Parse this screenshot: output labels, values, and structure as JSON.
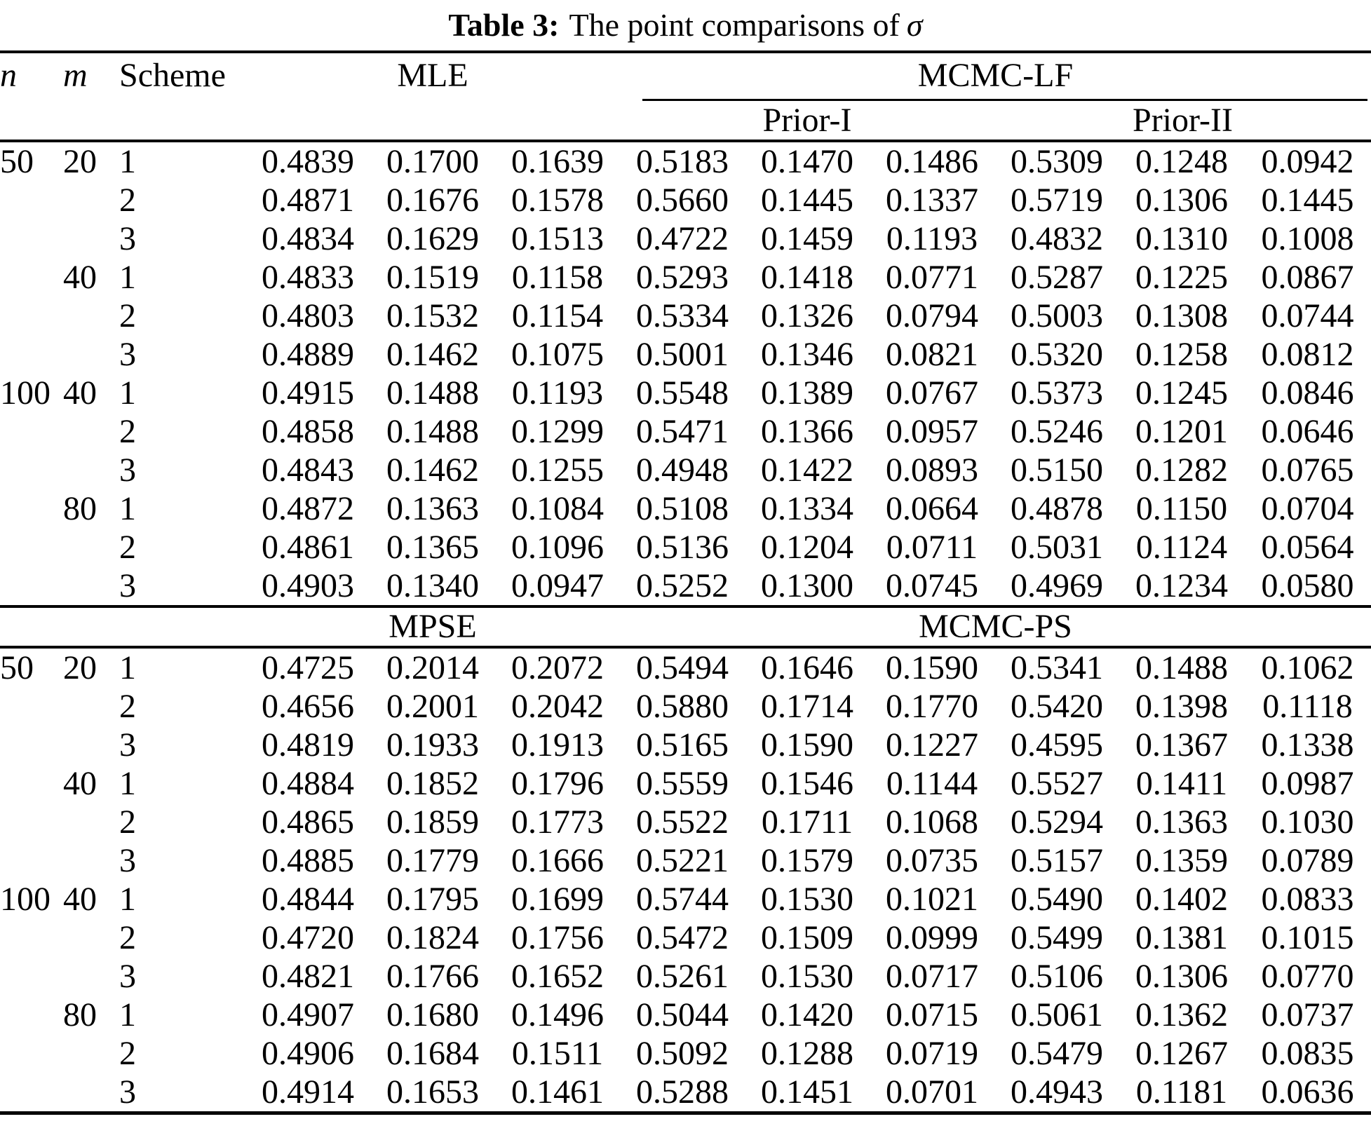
{
  "caption": {
    "label": "Table 3:",
    "text": "The point comparisons of",
    "symbol": "σ"
  },
  "header": {
    "n": "n",
    "m": "m",
    "scheme": "Scheme",
    "prior1": "Prior-I",
    "prior2": "Prior-II"
  },
  "colors": {
    "text": "#000000",
    "background": "#ffffff",
    "rule": "#000000"
  },
  "sections": [
    {
      "left_group": "MLE",
      "right_group": "MCMC-LF",
      "rows": [
        {
          "n": "50",
          "m": "20",
          "scheme": "1",
          "values": [
            "0.4839",
            "0.1700",
            "0.1639",
            "0.5183",
            "0.1470",
            "0.1486",
            "0.5309",
            "0.1248",
            "0.0942"
          ]
        },
        {
          "n": "",
          "m": "",
          "scheme": "2",
          "values": [
            "0.4871",
            "0.1676",
            "0.1578",
            "0.5660",
            "0.1445",
            "0.1337",
            "0.5719",
            "0.1306",
            "0.1445"
          ]
        },
        {
          "n": "",
          "m": "",
          "scheme": "3",
          "values": [
            "0.4834",
            "0.1629",
            "0.1513",
            "0.4722",
            "0.1459",
            "0.1193",
            "0.4832",
            "0.1310",
            "0.1008"
          ]
        },
        {
          "n": "",
          "m": "40",
          "scheme": "1",
          "values": [
            "0.4833",
            "0.1519",
            "0.1158",
            "0.5293",
            "0.1418",
            "0.0771",
            "0.5287",
            "0.1225",
            "0.0867"
          ]
        },
        {
          "n": "",
          "m": "",
          "scheme": "2",
          "values": [
            "0.4803",
            "0.1532",
            "0.1154",
            "0.5334",
            "0.1326",
            "0.0794",
            "0.5003",
            "0.1308",
            "0.0744"
          ]
        },
        {
          "n": "",
          "m": "",
          "scheme": "3",
          "values": [
            "0.4889",
            "0.1462",
            "0.1075",
            "0.5001",
            "0.1346",
            "0.0821",
            "0.5320",
            "0.1258",
            "0.0812"
          ]
        },
        {
          "n": "100",
          "m": "40",
          "scheme": "1",
          "values": [
            "0.4915",
            "0.1488",
            "0.1193",
            "0.5548",
            "0.1389",
            "0.0767",
            "0.5373",
            "0.1245",
            "0.0846"
          ]
        },
        {
          "n": "",
          "m": "",
          "scheme": "2",
          "values": [
            "0.4858",
            "0.1488",
            "0.1299",
            "0.5471",
            "0.1366",
            "0.0957",
            "0.5246",
            "0.1201",
            "0.0646"
          ]
        },
        {
          "n": "",
          "m": "",
          "scheme": "3",
          "values": [
            "0.4843",
            "0.1462",
            "0.1255",
            "0.4948",
            "0.1422",
            "0.0893",
            "0.5150",
            "0.1282",
            "0.0765"
          ]
        },
        {
          "n": "",
          "m": "80",
          "scheme": "1",
          "values": [
            "0.4872",
            "0.1363",
            "0.1084",
            "0.5108",
            "0.1334",
            "0.0664",
            "0.4878",
            "0.1150",
            "0.0704"
          ]
        },
        {
          "n": "",
          "m": "",
          "scheme": "2",
          "values": [
            "0.4861",
            "0.1365",
            "0.1096",
            "0.5136",
            "0.1204",
            "0.0711",
            "0.5031",
            "0.1124",
            "0.0564"
          ]
        },
        {
          "n": "",
          "m": "",
          "scheme": "3",
          "values": [
            "0.4903",
            "0.1340",
            "0.0947",
            "0.5252",
            "0.1300",
            "0.0745",
            "0.4969",
            "0.1234",
            "0.0580"
          ]
        }
      ]
    },
    {
      "left_group": "MPSE",
      "right_group": "MCMC-PS",
      "rows": [
        {
          "n": "50",
          "m": "20",
          "scheme": "1",
          "values": [
            "0.4725",
            "0.2014",
            "0.2072",
            "0.5494",
            "0.1646",
            "0.1590",
            "0.5341",
            "0.1488",
            "0.1062"
          ]
        },
        {
          "n": "",
          "m": "",
          "scheme": "2",
          "values": [
            "0.4656",
            "0.2001",
            "0.2042",
            "0.5880",
            "0.1714",
            "0.1770",
            "0.5420",
            "0.1398",
            "0.1118"
          ]
        },
        {
          "n": "",
          "m": "",
          "scheme": "3",
          "values": [
            "0.4819",
            "0.1933",
            "0.1913",
            "0.5165",
            "0.1590",
            "0.1227",
            "0.4595",
            "0.1367",
            "0.1338"
          ]
        },
        {
          "n": "",
          "m": "40",
          "scheme": "1",
          "values": [
            "0.4884",
            "0.1852",
            "0.1796",
            "0.5559",
            "0.1546",
            "0.1144",
            "0.5527",
            "0.1411",
            "0.0987"
          ]
        },
        {
          "n": "",
          "m": "",
          "scheme": "2",
          "values": [
            "0.4865",
            "0.1859",
            "0.1773",
            "0.5522",
            "0.1711",
            "0.1068",
            "0.5294",
            "0.1363",
            "0.1030"
          ]
        },
        {
          "n": "",
          "m": "",
          "scheme": "3",
          "values": [
            "0.4885",
            "0.1779",
            "0.1666",
            "0.5221",
            "0.1579",
            "0.0735",
            "0.5157",
            "0.1359",
            "0.0789"
          ]
        },
        {
          "n": "100",
          "m": "40",
          "scheme": "1",
          "values": [
            "0.4844",
            "0.1795",
            "0.1699",
            "0.5744",
            "0.1530",
            "0.1021",
            "0.5490",
            "0.1402",
            "0.0833"
          ]
        },
        {
          "n": "",
          "m": "",
          "scheme": "2",
          "values": [
            "0.4720",
            "0.1824",
            "0.1756",
            "0.5472",
            "0.1509",
            "0.0999",
            "0.5499",
            "0.1381",
            "0.1015"
          ]
        },
        {
          "n": "",
          "m": "",
          "scheme": "3",
          "values": [
            "0.4821",
            "0.1766",
            "0.1652",
            "0.5261",
            "0.1530",
            "0.0717",
            "0.5106",
            "0.1306",
            "0.0770"
          ]
        },
        {
          "n": "",
          "m": "80",
          "scheme": "1",
          "values": [
            "0.4907",
            "0.1680",
            "0.1496",
            "0.5044",
            "0.1420",
            "0.0715",
            "0.5061",
            "0.1362",
            "0.0737"
          ]
        },
        {
          "n": "",
          "m": "",
          "scheme": "2",
          "values": [
            "0.4906",
            "0.1684",
            "0.1511",
            "0.5092",
            "0.1288",
            "0.0719",
            "0.5479",
            "0.1267",
            "0.0835"
          ]
        },
        {
          "n": "",
          "m": "",
          "scheme": "3",
          "values": [
            "0.4914",
            "0.1653",
            "0.1461",
            "0.5288",
            "0.1451",
            "0.0701",
            "0.4943",
            "0.1181",
            "0.0636"
          ]
        }
      ]
    }
  ]
}
